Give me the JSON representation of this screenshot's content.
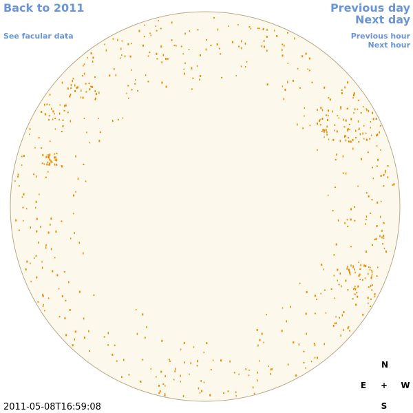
{
  "header": {
    "back_link": "Back to 2011",
    "facular_link": "See facular data",
    "previous_day": "Previous day",
    "next_day": "Next day",
    "previous_hour": "Previous hour",
    "next_hour": "Next hour"
  },
  "timestamp": "2011-05-08T16:59:08",
  "compass": {
    "north": "N",
    "east": "E",
    "center": "+",
    "west": "W",
    "south": "S"
  }
}
